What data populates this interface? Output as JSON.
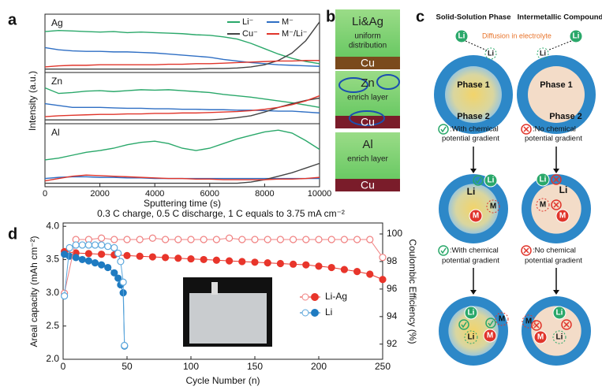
{
  "chart_data": [
    {
      "type": "line",
      "label": "a",
      "xlabel": "Sputtering time (s)",
      "ylabel": "Intensity (a.u.)",
      "x": [
        0,
        500,
        1000,
        1500,
        2000,
        2500,
        3000,
        3500,
        4000,
        4500,
        5000,
        5500,
        6000,
        6500,
        7000,
        7500,
        8000,
        8500,
        9000,
        9500,
        10000
      ],
      "xlim": [
        0,
        10000
      ],
      "xticks": [
        0,
        2000,
        4000,
        6000,
        8000,
        10000
      ],
      "ylim": [
        0,
        1
      ],
      "subplots": [
        {
          "label": "Ag",
          "series": [
            {
              "name": "Li⁻",
              "color": "#2aa86a",
              "values": [
                0.72,
                0.74,
                0.73,
                0.72,
                0.71,
                0.72,
                0.7,
                0.71,
                0.7,
                0.69,
                0.68,
                0.66,
                0.65,
                0.62,
                0.58,
                0.5,
                0.4,
                0.3,
                0.22,
                0.16,
                0.12
              ]
            },
            {
              "name": "M⁻",
              "color": "#2f6fc4",
              "values": [
                0.42,
                0.38,
                0.36,
                0.35,
                0.35,
                0.34,
                0.34,
                0.33,
                0.32,
                0.3,
                0.28,
                0.26,
                0.24,
                0.2,
                0.17,
                0.14,
                0.12,
                0.1,
                0.09,
                0.08,
                0.07
              ]
            },
            {
              "name": "Cu⁻",
              "color": "#444444",
              "values": [
                0.02,
                0.02,
                0.02,
                0.02,
                0.02,
                0.02,
                0.02,
                0.02,
                0.02,
                0.02,
                0.02,
                0.02,
                0.03,
                0.03,
                0.04,
                0.06,
                0.1,
                0.18,
                0.32,
                0.55,
                0.9
              ]
            },
            {
              "name": "M⁻/Li⁻",
              "color": "#e0352b",
              "values": [
                0.06,
                0.08,
                0.09,
                0.09,
                0.1,
                0.1,
                0.1,
                0.1,
                0.1,
                0.11,
                0.11,
                0.12,
                0.12,
                0.13,
                0.14,
                0.15,
                0.16,
                0.17,
                0.17,
                0.18,
                0.18
              ]
            }
          ]
        },
        {
          "label": "Zn",
          "series": [
            {
              "color": "#2aa86a",
              "values": [
                0.72,
                0.6,
                0.62,
                0.65,
                0.66,
                0.64,
                0.66,
                0.68,
                0.67,
                0.68,
                0.66,
                0.64,
                0.62,
                0.58,
                0.55,
                0.52,
                0.48,
                0.44,
                0.4,
                0.35,
                0.3
              ]
            },
            {
              "color": "#2f6fc4",
              "values": [
                0.38,
                0.34,
                0.3,
                0.3,
                0.3,
                0.29,
                0.28,
                0.28,
                0.27,
                0.27,
                0.26,
                0.26,
                0.25,
                0.25,
                0.24,
                0.24,
                0.23,
                0.22,
                0.22,
                0.2,
                0.18
              ]
            },
            {
              "color": "#444444",
              "values": [
                0.03,
                0.03,
                0.03,
                0.03,
                0.03,
                0.03,
                0.03,
                0.03,
                0.03,
                0.03,
                0.03,
                0.03,
                0.03,
                0.05,
                0.08,
                0.12,
                0.2,
                0.3,
                0.38,
                0.45,
                0.5
              ]
            },
            {
              "color": "#e0352b",
              "values": [
                0.1,
                0.12,
                0.13,
                0.14,
                0.15,
                0.15,
                0.16,
                0.16,
                0.17,
                0.17,
                0.18,
                0.18,
                0.19,
                0.2,
                0.21,
                0.23,
                0.26,
                0.3,
                0.36,
                0.44,
                0.55
              ]
            }
          ]
        },
        {
          "label": "Al",
          "series": [
            {
              "color": "#2aa86a",
              "values": [
                0.42,
                0.45,
                0.5,
                0.55,
                0.58,
                0.62,
                0.68,
                0.72,
                0.74,
                0.7,
                0.62,
                0.58,
                0.62,
                0.7,
                0.78,
                0.84,
                0.9,
                0.93,
                0.88,
                0.75,
                0.6
              ]
            },
            {
              "color": "#2f6fc4",
              "values": [
                0.1,
                0.12,
                0.13,
                0.13,
                0.12,
                0.12,
                0.11,
                0.11,
                0.1,
                0.1,
                0.1,
                0.1,
                0.1,
                0.1,
                0.1,
                0.1,
                0.1,
                0.1,
                0.1,
                0.1,
                0.1
              ]
            },
            {
              "color": "#444444",
              "values": [
                0.02,
                0.02,
                0.02,
                0.02,
                0.02,
                0.02,
                0.02,
                0.02,
                0.02,
                0.02,
                0.02,
                0.02,
                0.02,
                0.02,
                0.02,
                0.04,
                0.08,
                0.14,
                0.2,
                0.28,
                0.36
              ]
            },
            {
              "color": "#e0352b",
              "values": [
                0.06,
                0.1,
                0.14,
                0.16,
                0.15,
                0.14,
                0.13,
                0.12,
                0.11,
                0.1,
                0.1,
                0.09,
                0.09,
                0.08,
                0.08,
                0.08,
                0.08,
                0.09,
                0.09,
                0.1,
                0.12
              ]
            }
          ]
        }
      ]
    },
    {
      "type": "scatter",
      "label": "d",
      "title": "0.3 C charge, 0.5 C discharge, 1 C equals to 3.75 mA cm⁻²",
      "xlabel": "Cycle Number (n)",
      "ylabel": "Areal capacity (mAh cm⁻²)",
      "y2label": "Coulombic Efficiency (%)",
      "xlim": [
        0,
        250
      ],
      "xticks": [
        0,
        50,
        100,
        150,
        200,
        250
      ],
      "ylim": [
        2,
        4.05
      ],
      "yticks": [
        {
          "value": 2,
          "label": "2.0"
        },
        {
          "value": 2.5,
          "label": "2.5"
        },
        {
          "value": 3,
          "label": "3.0"
        },
        {
          "value": 3.5,
          "label": "3.5"
        },
        {
          "value": 4,
          "label": "4.0"
        }
      ],
      "y2lim": [
        90.9,
        100.8
      ],
      "y2ticks": [
        92,
        94,
        96,
        98,
        100
      ],
      "series": [
        {
          "name": "Li-Ag",
          "color": "#e8352b",
          "marker": "filled",
          "x": [
            1,
            10,
            20,
            30,
            40,
            50,
            60,
            70,
            80,
            90,
            100,
            110,
            120,
            130,
            140,
            150,
            160,
            170,
            180,
            190,
            200,
            210,
            220,
            230,
            240,
            250
          ],
          "values": [
            3.62,
            3.6,
            3.59,
            3.58,
            3.57,
            3.56,
            3.55,
            3.54,
            3.53,
            3.52,
            3.51,
            3.5,
            3.49,
            3.48,
            3.47,
            3.46,
            3.45,
            3.44,
            3.43,
            3.42,
            3.4,
            3.38,
            3.35,
            3.32,
            3.28,
            3.2
          ]
        },
        {
          "name": "Li",
          "color": "#1f7bc1",
          "marker": "filled",
          "x": [
            1,
            5,
            10,
            15,
            20,
            25,
            30,
            35,
            40,
            43,
            45,
            47,
            48
          ],
          "values": [
            3.58,
            3.55,
            3.53,
            3.5,
            3.48,
            3.45,
            3.42,
            3.38,
            3.3,
            3.22,
            3.12,
            3.0,
            2.2
          ]
        },
        {
          "color": "#f08080",
          "marker": "hollow",
          "axis": "y2",
          "x": [
            1,
            10,
            20,
            30,
            40,
            50,
            60,
            70,
            80,
            90,
            100,
            110,
            120,
            130,
            140,
            150,
            160,
            170,
            180,
            190,
            200,
            210,
            220,
            230,
            240,
            250
          ],
          "values": [
            95.7,
            99.6,
            99.6,
            99.7,
            99.6,
            99.6,
            99.6,
            99.7,
            99.6,
            99.6,
            99.6,
            99.6,
            99.6,
            99.7,
            99.6,
            99.6,
            99.6,
            99.6,
            99.6,
            99.6,
            99.6,
            99.6,
            99.6,
            99.6,
            99.6,
            98.3
          ]
        },
        {
          "color": "#5aa6dc",
          "marker": "hollow",
          "axis": "y2",
          "x": [
            1,
            5,
            10,
            15,
            20,
            25,
            30,
            35,
            40,
            43,
            45,
            47,
            48
          ],
          "values": [
            95.5,
            99.0,
            99.2,
            99.2,
            99.2,
            99.2,
            99.2,
            99.1,
            99.0,
            98.6,
            98.0,
            96.5,
            91.9
          ]
        }
      ]
    }
  ],
  "panel_b": {
    "label": "b",
    "boxes": [
      {
        "lines": [
          "Li&Ag",
          "uniform",
          "distribution"
        ],
        "base": "Cu"
      },
      {
        "lines": [
          "Zn",
          "enrich layer"
        ],
        "base": "Cu"
      },
      {
        "lines": [
          "Al",
          "enrich layer"
        ],
        "base": "Cu"
      }
    ]
  },
  "panel_c": {
    "label": "c",
    "headers": [
      "Solid-Solution Phase",
      "Intermetallic Compound"
    ],
    "diffusion": "Diffusion in electrolyte",
    "ion": "Li",
    "metal": "M",
    "phase1": "Phase 1",
    "phase2": "Phase 2",
    "notes": [
      [
        ":With chemical",
        "potential gradient"
      ],
      [
        ":No chemical",
        "potential gradient"
      ]
    ]
  }
}
